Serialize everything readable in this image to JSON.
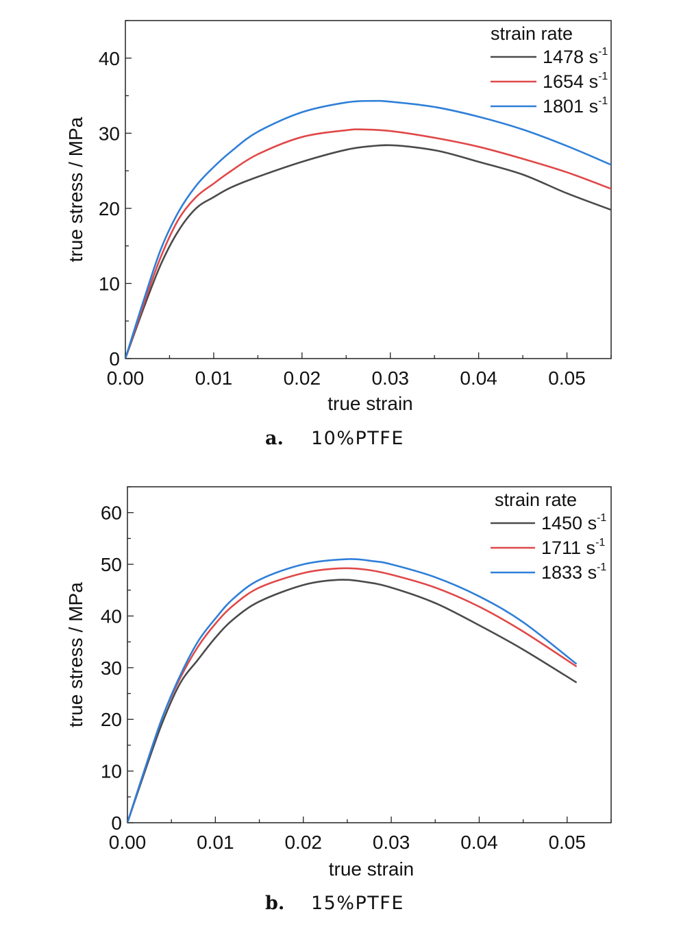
{
  "chart_data": [
    {
      "type": "line",
      "caption_letter": "a.",
      "caption_text": "10%PTFE",
      "xlabel": "true strain",
      "ylabel": "true stress / MPa",
      "xlim": [
        0,
        0.055
      ],
      "ylim": [
        0,
        45
      ],
      "x_ticks": [
        "0.00",
        "0.01",
        "0.02",
        "0.03",
        "0.04",
        "0.05"
      ],
      "x_tick_values": [
        0,
        0.01,
        0.02,
        0.03,
        0.04,
        0.05
      ],
      "y_ticks": [
        "0",
        "10",
        "20",
        "30",
        "40"
      ],
      "y_tick_values": [
        0,
        10,
        20,
        30,
        40
      ],
      "legend_title": "strain rate",
      "legend_position": "top-right",
      "series": [
        {
          "name": "1478 s-1",
          "label_value": "1478 s",
          "label_sup": "-1",
          "color": "#4a4a4a",
          "points": [
            [
              0,
              0
            ],
            [
              0.002,
              6.5
            ],
            [
              0.004,
              12.5
            ],
            [
              0.006,
              17
            ],
            [
              0.008,
              20
            ],
            [
              0.01,
              21.5
            ],
            [
              0.012,
              22.8
            ],
            [
              0.015,
              24.2
            ],
            [
              0.02,
              26.2
            ],
            [
              0.025,
              27.8
            ],
            [
              0.028,
              28.3
            ],
            [
              0.03,
              28.4
            ],
            [
              0.033,
              28.1
            ],
            [
              0.036,
              27.5
            ],
            [
              0.04,
              26.2
            ],
            [
              0.045,
              24.5
            ],
            [
              0.05,
              22
            ],
            [
              0.055,
              19.8
            ]
          ]
        },
        {
          "name": "1654 s-1",
          "label_value": "1654 s",
          "label_sup": "-1",
          "color": "#e04848",
          "points": [
            [
              0,
              0
            ],
            [
              0.002,
              7
            ],
            [
              0.004,
              13.5
            ],
            [
              0.006,
              18.5
            ],
            [
              0.008,
              21.5
            ],
            [
              0.01,
              23.3
            ],
            [
              0.012,
              25
            ],
            [
              0.015,
              27.2
            ],
            [
              0.02,
              29.5
            ],
            [
              0.025,
              30.4
            ],
            [
              0.027,
              30.5
            ],
            [
              0.03,
              30.3
            ],
            [
              0.035,
              29.4
            ],
            [
              0.04,
              28.2
            ],
            [
              0.045,
              26.6
            ],
            [
              0.05,
              24.8
            ],
            [
              0.055,
              22.6
            ]
          ]
        },
        {
          "name": "1801 s-1",
          "label_value": "1801 s",
          "label_sup": "-1",
          "color": "#2f7fd8",
          "points": [
            [
              0,
              0
            ],
            [
              0.002,
              7.5
            ],
            [
              0.004,
              14.5
            ],
            [
              0.006,
              19.5
            ],
            [
              0.008,
              23
            ],
            [
              0.01,
              25.5
            ],
            [
              0.012,
              27.6
            ],
            [
              0.015,
              30.2
            ],
            [
              0.02,
              32.8
            ],
            [
              0.025,
              34.1
            ],
            [
              0.028,
              34.3
            ],
            [
              0.03,
              34.2
            ],
            [
              0.035,
              33.5
            ],
            [
              0.04,
              32.2
            ],
            [
              0.045,
              30.5
            ],
            [
              0.05,
              28.3
            ],
            [
              0.055,
              25.8
            ]
          ]
        }
      ]
    },
    {
      "type": "line",
      "caption_letter": "b.",
      "caption_text": "15%PTFE",
      "xlabel": "true strain",
      "ylabel": "true stress / MPa",
      "xlim": [
        0,
        0.055
      ],
      "ylim": [
        0,
        65
      ],
      "x_ticks": [
        "0.00",
        "0.01",
        "0.02",
        "0.03",
        "0.04",
        "0.05"
      ],
      "x_tick_values": [
        0,
        0.01,
        0.02,
        0.03,
        0.04,
        0.05
      ],
      "y_ticks": [
        "0",
        "10",
        "20",
        "30",
        "40",
        "50",
        "60"
      ],
      "y_tick_values": [
        0,
        10,
        20,
        30,
        40,
        50,
        60
      ],
      "legend_title": "strain rate",
      "legend_position": "top-right",
      "series": [
        {
          "name": "1450 s-1",
          "label_value": "1450 s",
          "label_sup": "-1",
          "color": "#4a4a4a",
          "points": [
            [
              0,
              0
            ],
            [
              0.002,
              10
            ],
            [
              0.004,
              19.5
            ],
            [
              0.006,
              27
            ],
            [
              0.008,
              31.5
            ],
            [
              0.01,
              35.8
            ],
            [
              0.012,
              39.3
            ],
            [
              0.015,
              42.8
            ],
            [
              0.02,
              46
            ],
            [
              0.024,
              47
            ],
            [
              0.027,
              46.6
            ],
            [
              0.03,
              45.5
            ],
            [
              0.035,
              42.5
            ],
            [
              0.04,
              38.2
            ],
            [
              0.045,
              33.5
            ],
            [
              0.051,
              27.2
            ]
          ]
        },
        {
          "name": "1711 s-1",
          "label_value": "1711 s",
          "label_sup": "-1",
          "color": "#e04848",
          "points": [
            [
              0,
              0
            ],
            [
              0.002,
              10.5
            ],
            [
              0.004,
              20.5
            ],
            [
              0.006,
              28
            ],
            [
              0.008,
              34
            ],
            [
              0.01,
              38.5
            ],
            [
              0.012,
              42
            ],
            [
              0.015,
              45.5
            ],
            [
              0.02,
              48.3
            ],
            [
              0.024,
              49.2
            ],
            [
              0.027,
              49
            ],
            [
              0.03,
              48
            ],
            [
              0.035,
              45.5
            ],
            [
              0.04,
              41.8
            ],
            [
              0.045,
              37
            ],
            [
              0.051,
              30.3
            ]
          ]
        },
        {
          "name": "1833 s-1",
          "label_value": "1833 s",
          "label_sup": "-1",
          "color": "#2f7fd8",
          "points": [
            [
              0,
              0
            ],
            [
              0.002,
              10.5
            ],
            [
              0.004,
              20.5
            ],
            [
              0.006,
              28.5
            ],
            [
              0.008,
              35
            ],
            [
              0.01,
              39.5
            ],
            [
              0.012,
              43.3
            ],
            [
              0.015,
              47
            ],
            [
              0.02,
              50
            ],
            [
              0.025,
              51
            ],
            [
              0.028,
              50.6
            ],
            [
              0.03,
              50
            ],
            [
              0.035,
              47.5
            ],
            [
              0.04,
              43.8
            ],
            [
              0.045,
              38.8
            ],
            [
              0.051,
              30.8
            ]
          ]
        }
      ]
    }
  ]
}
